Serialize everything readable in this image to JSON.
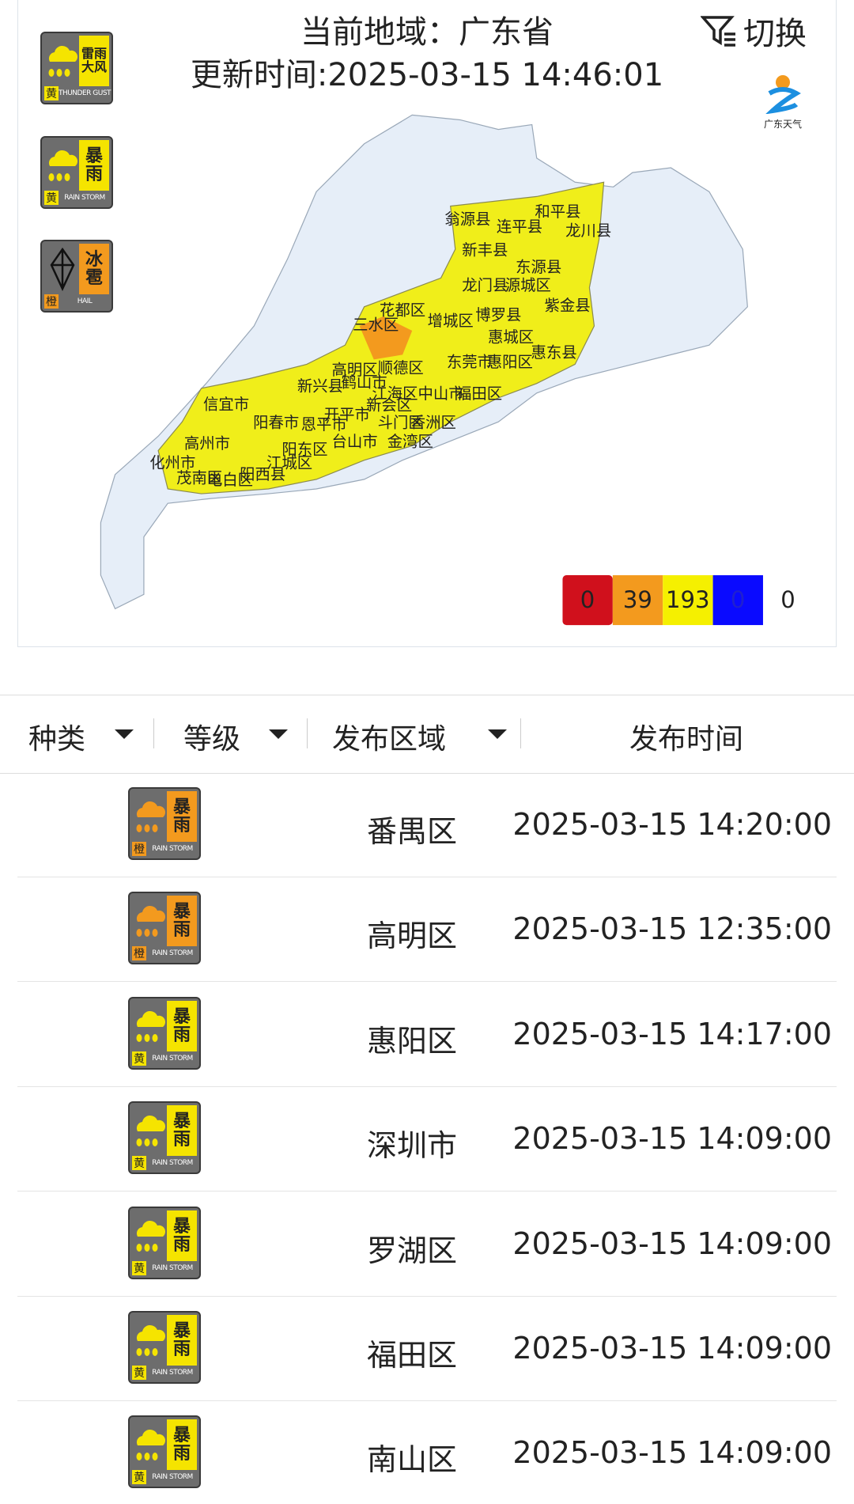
{
  "header": {
    "region": "当前地域：广东省",
    "updated": "更新时间:2025-03-15 14:46:01",
    "switch": "切换",
    "logo": "广东天气"
  },
  "legend_icons": [
    {
      "title": "雷雨大风",
      "level": "黄",
      "english": "THUNDER GUST",
      "color": "#f5e400"
    },
    {
      "title": "暴雨",
      "level": "黄",
      "english": "RAIN STORM",
      "color": "#f5e400"
    },
    {
      "title": "冰雹",
      "level": "橙",
      "english": "HAIL",
      "color": "#f39a1e"
    }
  ],
  "map_labels": [
    "翁源县",
    "和平县",
    "连平县",
    "龙川县",
    "新丰县",
    "东源县",
    "龙门县",
    "源城区",
    "紫金县",
    "花都区",
    "博罗县",
    "增城区",
    "三水区",
    "惠城区",
    "惠东县",
    "惠阳区",
    "东莞市",
    "高明区",
    "顺德区",
    "新兴县",
    "鹤山市",
    "江海区",
    "中山市",
    "福田区",
    "信宜市",
    "开平市",
    "新会区",
    "阳春市",
    "恩平市",
    "斗门区",
    "香洲区",
    "高州市",
    "阳东区",
    "台山市",
    "金湾区",
    "化州市",
    "江城区",
    "茂南区",
    "电白区",
    "阳西县"
  ],
  "counts": [
    {
      "color": "#d0101c",
      "value": 0
    },
    {
      "color": "#f39a1e",
      "value": 39
    },
    {
      "color": "#f5f000",
      "value": 193
    },
    {
      "color": "#0a0aff",
      "value": 0
    },
    {
      "color": "#ffffff",
      "value": 0
    }
  ],
  "table": {
    "headers": [
      "种类",
      "等级",
      "发布区域",
      "发布时间"
    ],
    "rows": [
      {
        "icon": {
          "title": "暴雨",
          "level": "橙",
          "english": "RAIN STORM",
          "color": "#f39a1e"
        },
        "area": "番禺区",
        "time": "2025-03-15 14:20:00"
      },
      {
        "icon": {
          "title": "暴雨",
          "level": "橙",
          "english": "RAIN STORM",
          "color": "#f39a1e"
        },
        "area": "高明区",
        "time": "2025-03-15 12:35:00"
      },
      {
        "icon": {
          "title": "暴雨",
          "level": "黄",
          "english": "RAIN STORM",
          "color": "#f5e400"
        },
        "area": "惠阳区",
        "time": "2025-03-15 14:17:00"
      },
      {
        "icon": {
          "title": "暴雨",
          "level": "黄",
          "english": "RAIN STORM",
          "color": "#f5e400"
        },
        "area": "深圳市",
        "time": "2025-03-15 14:09:00"
      },
      {
        "icon": {
          "title": "暴雨",
          "level": "黄",
          "english": "RAIN STORM",
          "color": "#f5e400"
        },
        "area": "罗湖区",
        "time": "2025-03-15 14:09:00"
      },
      {
        "icon": {
          "title": "暴雨",
          "level": "黄",
          "english": "RAIN STORM",
          "color": "#f5e400"
        },
        "area": "福田区",
        "time": "2025-03-15 14:09:00"
      },
      {
        "icon": {
          "title": "暴雨",
          "level": "黄",
          "english": "RAIN STORM",
          "color": "#f5e400"
        },
        "area": "南山区",
        "time": "2025-03-15 14:09:00"
      }
    ]
  }
}
